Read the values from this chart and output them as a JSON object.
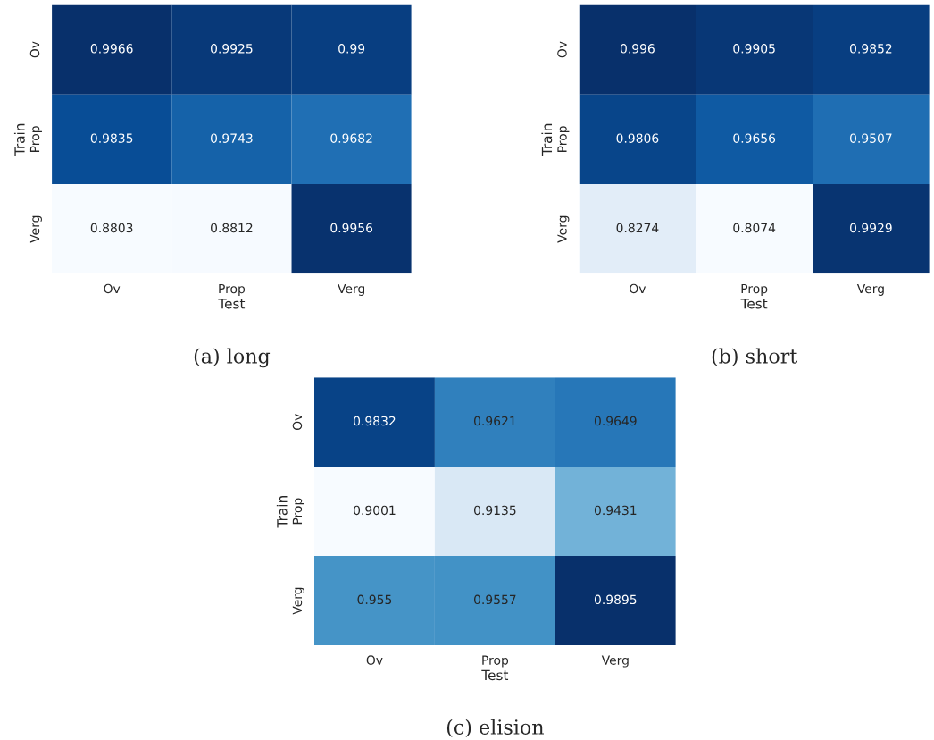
{
  "chart_data": [
    {
      "type": "heatmap",
      "title": "(a) long",
      "xlabel": "Test",
      "ylabel": "Train",
      "categories": [
        "Ov",
        "Prop",
        "Verg"
      ],
      "y_categories": [
        "Ov",
        "Prop",
        "Verg"
      ],
      "data_labels": true,
      "cells": [
        [
          0.9966,
          0.9925,
          0.99
        ],
        [
          0.9835,
          0.9743,
          0.9682
        ],
        [
          0.8803,
          0.8812,
          0.9956
        ]
      ]
    },
    {
      "type": "heatmap",
      "title": "(b) short",
      "xlabel": "Test",
      "ylabel": "Train",
      "categories": [
        "Ov",
        "Prop",
        "Verg"
      ],
      "y_categories": [
        "Ov",
        "Prop",
        "Verg"
      ],
      "data_labels": true,
      "cells": [
        [
          0.996,
          0.9905,
          0.9852
        ],
        [
          0.9806,
          0.9656,
          0.9507
        ],
        [
          0.8274,
          0.8074,
          0.9929
        ]
      ]
    },
    {
      "type": "heatmap",
      "title": "(c) elision",
      "xlabel": "Test",
      "ylabel": "Train",
      "categories": [
        "Ov",
        "Prop",
        "Verg"
      ],
      "y_categories": [
        "Ov",
        "Prop",
        "Verg"
      ],
      "data_labels": true,
      "cells": [
        [
          0.9832,
          0.9621,
          0.9649
        ],
        [
          0.9001,
          0.9135,
          0.9431
        ],
        [
          0.955,
          0.9557,
          0.9895
        ]
      ]
    }
  ]
}
